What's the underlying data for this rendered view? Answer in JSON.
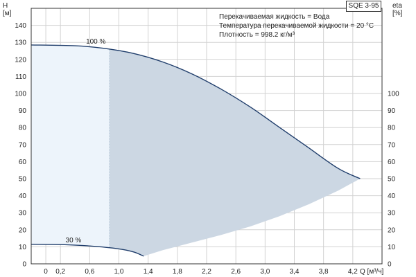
{
  "chart_data": {
    "type": "area",
    "product_label": "SQE 3-95",
    "y_left_label": [
      "H",
      "[м]"
    ],
    "y_right_label": [
      "eta",
      "[%]"
    ],
    "x_label": "Q [м³/ч]",
    "notes": [
      "Перекачиваемая жидкость = Вода",
      "Температура перекачиваемой жидкости = 20 °C",
      "Плотность = 998.2 кг/м³"
    ],
    "x_ticks": [
      "0",
      "0,2",
      "0,6",
      "1,0",
      "1,4",
      "1,8",
      "2,2",
      "2,6",
      "3,0",
      "3,4",
      "3,8",
      "4,2"
    ],
    "x_tick_values": [
      0,
      0.2,
      0.6,
      1.0,
      1.4,
      1.8,
      2.2,
      2.6,
      3.0,
      3.4,
      3.8,
      4.2
    ],
    "xlim": [
      -0.2,
      4.6
    ],
    "y_left_ticks": [
      0,
      10,
      20,
      30,
      40,
      50,
      60,
      70,
      80,
      90,
      100,
      110,
      120,
      130,
      140
    ],
    "ylim_left": [
      0,
      150
    ],
    "y_right_ticks": [
      0,
      10,
      20,
      30,
      40,
      50,
      60,
      70,
      80,
      90,
      100
    ],
    "series": [
      {
        "name": "100 %",
        "x": [
          -0.2,
          0.4,
          0.8,
          1.2,
          1.6,
          2.0,
          2.4,
          2.8,
          3.2,
          3.6,
          4.0,
          4.3
        ],
        "y": [
          128.5,
          128,
          126.5,
          123.5,
          118.5,
          111.5,
          102.5,
          92,
          80,
          68,
          56,
          50
        ]
      },
      {
        "name": "30 %",
        "x": [
          -0.2,
          0.2,
          0.6,
          1.0,
          1.2,
          1.34
        ],
        "y": [
          11.5,
          11.3,
          10.5,
          8.8,
          7,
          4.5
        ]
      }
    ],
    "lower_envelope": {
      "x": [
        4.3,
        4.0,
        3.6,
        3.2,
        2.8,
        2.4,
        2.0,
        1.6,
        1.34
      ],
      "y": [
        50,
        43,
        35,
        28,
        22,
        17,
        12.5,
        8,
        4.5
      ]
    },
    "light_region_x_max": 0.87,
    "colors": {
      "curve": "#1f3d6b",
      "area_dark": "#ccd7e3",
      "area_light": "#edf4fb",
      "grid": "#d2d2d2",
      "axis": "#333333"
    }
  }
}
